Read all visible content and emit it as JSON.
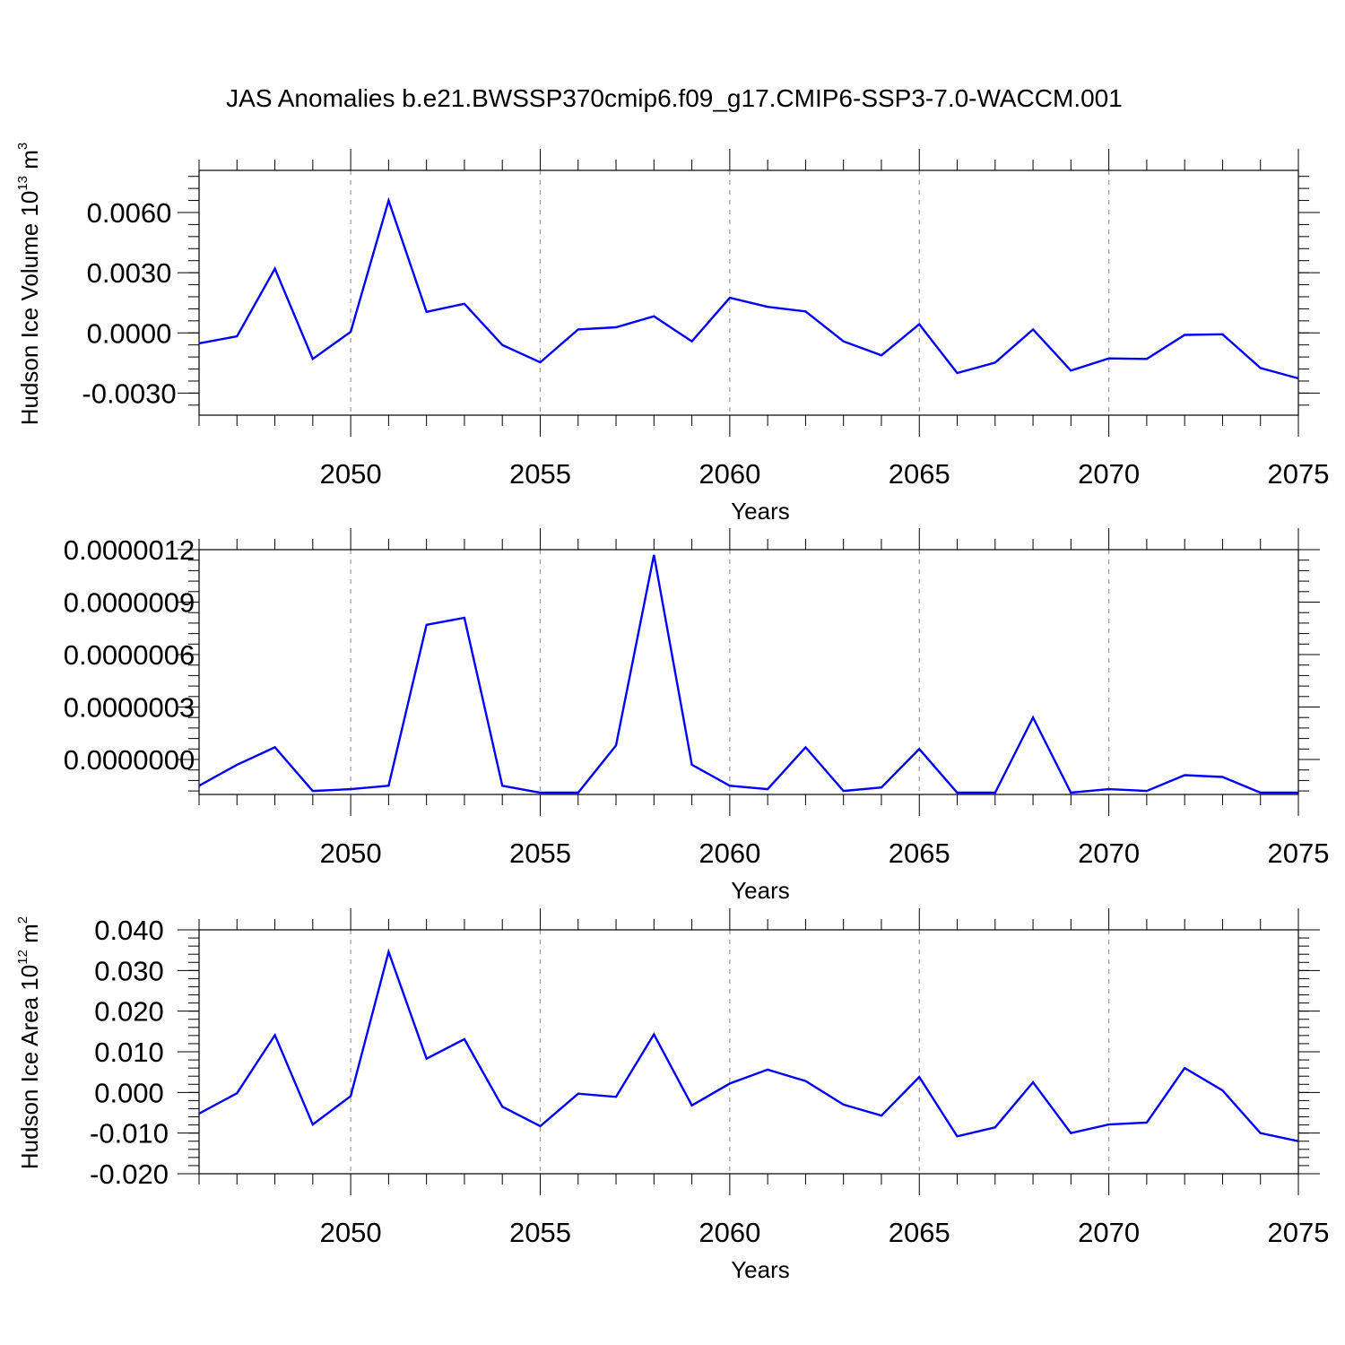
{
  "title": "JAS Anomalies b.e21.BWSSP370cmip6.f09_g17.CMIP6-SSP3-7.0-WACCM.001",
  "colors": {
    "series": "#0000ff",
    "axis": "#000000",
    "grid": "#999999"
  },
  "chart_data": [
    {
      "type": "line",
      "ylabel": {
        "text": "Hudson Ice Volume 10",
        "sup": "13",
        "unit": " m",
        "unit_sup": "3"
      },
      "xlabel": "Years",
      "xlim": [
        2046,
        2075
      ],
      "ylim": [
        -0.0041,
        0.0081
      ],
      "x_ticks": [
        2050,
        2055,
        2060,
        2065,
        2070,
        2075
      ],
      "y_ticks": [
        -0.003,
        0.0,
        0.003,
        0.006
      ],
      "y_tick_labels": [
        "-0.0030",
        "0.0000",
        "0.0030",
        "0.0060"
      ],
      "x": [
        2046,
        2047,
        2048,
        2049,
        2050,
        2051,
        2052,
        2053,
        2054,
        2055,
        2056,
        2057,
        2058,
        2059,
        2060,
        2061,
        2062,
        2063,
        2064,
        2065,
        2066,
        2067,
        2068,
        2069,
        2070,
        2071,
        2072,
        2073,
        2074,
        2075
      ],
      "values": [
        -0.00052,
        -0.00017,
        0.0032,
        -0.0013,
        5e-05,
        0.0066,
        0.00105,
        0.00145,
        -0.0006,
        -0.00147,
        0.00017,
        0.00028,
        0.00083,
        -0.00042,
        0.00175,
        0.0013,
        0.00107,
        -0.00042,
        -0.00112,
        0.00043,
        -0.002,
        -0.00148,
        0.00017,
        -0.00188,
        -0.00127,
        -0.0013,
        -0.0001,
        -7e-05,
        -0.00175,
        -0.00227
      ]
    },
    {
      "type": "line",
      "ylabel": null,
      "xlabel": "Years",
      "xlim": [
        2046,
        2075
      ],
      "ylim": [
        -2e-07,
        1.2e-06
      ],
      "x_ticks": [
        2050,
        2055,
        2060,
        2065,
        2070,
        2075
      ],
      "y_ticks": [
        0.0,
        3e-07,
        6e-07,
        9e-07,
        1.2e-06
      ],
      "y_tick_labels": [
        "0.0000000",
        "0.0000003",
        "0.0000006",
        "0.0000009",
        "0.0000012"
      ],
      "x": [
        2046,
        2047,
        2048,
        2049,
        2050,
        2051,
        2052,
        2053,
        2054,
        2055,
        2056,
        2057,
        2058,
        2059,
        2060,
        2061,
        2062,
        2063,
        2064,
        2065,
        2066,
        2067,
        2068,
        2069,
        2070,
        2071,
        2072,
        2073,
        2074,
        2075
      ],
      "values": [
        -1.5e-07,
        -3e-08,
        7e-08,
        -1.8e-07,
        -1.7e-07,
        -1.5e-07,
        7.7e-07,
        8.1e-07,
        -1.5e-07,
        -1.9e-07,
        -1.9e-07,
        8e-08,
        1.17e-06,
        -3e-08,
        -1.5e-07,
        -1.7e-07,
        7e-08,
        -1.8e-07,
        -1.6e-07,
        6e-08,
        -1.9e-07,
        -1.9e-07,
        2.4e-07,
        -1.9e-07,
        -1.7e-07,
        -1.8e-07,
        -9e-08,
        -1e-07,
        -1.9e-07,
        -1.9e-07
      ]
    },
    {
      "type": "line",
      "ylabel": {
        "text": "Hudson Ice Area 10",
        "sup": "12",
        "unit": " m",
        "unit_sup": "2"
      },
      "xlabel": "Years",
      "xlim": [
        2046,
        2075
      ],
      "ylim": [
        -0.02,
        0.04
      ],
      "x_ticks": [
        2050,
        2055,
        2060,
        2065,
        2070,
        2075
      ],
      "y_ticks": [
        -0.02,
        -0.01,
        0.0,
        0.01,
        0.02,
        0.03,
        0.04
      ],
      "y_tick_labels": [
        "-0.020",
        "-0.010",
        "0.000",
        "0.010",
        "0.020",
        "0.030",
        "0.040"
      ],
      "x": [
        2046,
        2047,
        2048,
        2049,
        2050,
        2051,
        2052,
        2053,
        2054,
        2055,
        2056,
        2057,
        2058,
        2059,
        2060,
        2061,
        2062,
        2063,
        2064,
        2065,
        2066,
        2067,
        2068,
        2069,
        2070,
        2071,
        2072,
        2073,
        2074,
        2075
      ],
      "values": [
        -0.0052,
        -0.0002,
        0.0141,
        -0.0079,
        -0.0009,
        0.0346,
        0.0083,
        0.0131,
        -0.0035,
        -0.0083,
        -0.0003,
        -0.0011,
        0.0143,
        -0.0032,
        0.0022,
        0.0056,
        0.0028,
        -0.003,
        -0.0057,
        0.0038,
        -0.0108,
        -0.0086,
        0.0025,
        -0.01,
        -0.0079,
        -0.0074,
        0.006,
        0.0005,
        -0.01,
        -0.012
      ]
    }
  ]
}
